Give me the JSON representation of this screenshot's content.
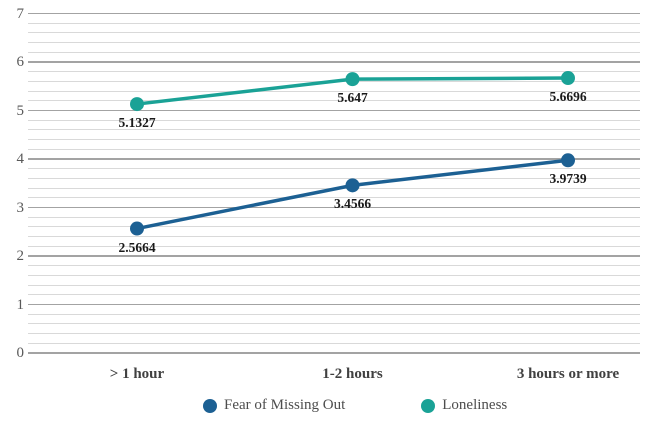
{
  "chart_data": {
    "type": "line",
    "title": "",
    "xlabel": "",
    "ylabel": "",
    "categories": [
      "> 1 hour",
      "1-2 hours",
      "3 hours or more"
    ],
    "series": [
      {
        "name": "Fear of Missing Out",
        "color": "#1c6093",
        "values": [
          2.5664,
          3.4566,
          3.9739
        ],
        "labels": [
          "2.5664",
          "3.4566",
          "3.9739"
        ]
      },
      {
        "name": "Loneliness",
        "color": "#1aa296",
        "values": [
          5.1327,
          5.647,
          5.6696
        ],
        "labels": [
          "5.1327",
          "5.647",
          "5.6696"
        ]
      }
    ],
    "ylim": [
      0,
      7
    ],
    "y_major_ticks": [
      0,
      1,
      2,
      3,
      4,
      5,
      6,
      7
    ],
    "y_minor_step": 0.2,
    "grid": true,
    "data_labels": true,
    "legend_position": "bottom"
  },
  "colors": {
    "background": "#ffffff",
    "major_gridline": "#a3a3a3",
    "minor_gridline": "#d9d9d9",
    "y_tick_text": "#595959",
    "x_tick_text": "#404040",
    "data_label_text": "#1a1a1a",
    "legend_text": "#4d4d4d"
  }
}
